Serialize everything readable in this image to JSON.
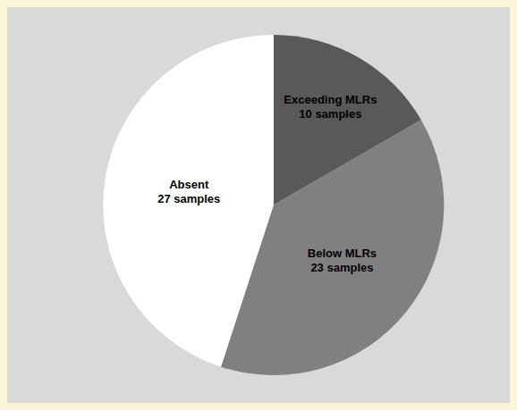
{
  "chart_data": {
    "type": "pie",
    "categories": [
      "Exceeding MLRs",
      "Below MLRs",
      "Absent"
    ],
    "values": [
      10,
      23,
      27
    ],
    "value_labels": [
      "10 samples",
      "23 samples",
      "27 samples"
    ],
    "colors": [
      "#595959",
      "#808080",
      "#ffffff"
    ],
    "data_labels": true
  }
}
